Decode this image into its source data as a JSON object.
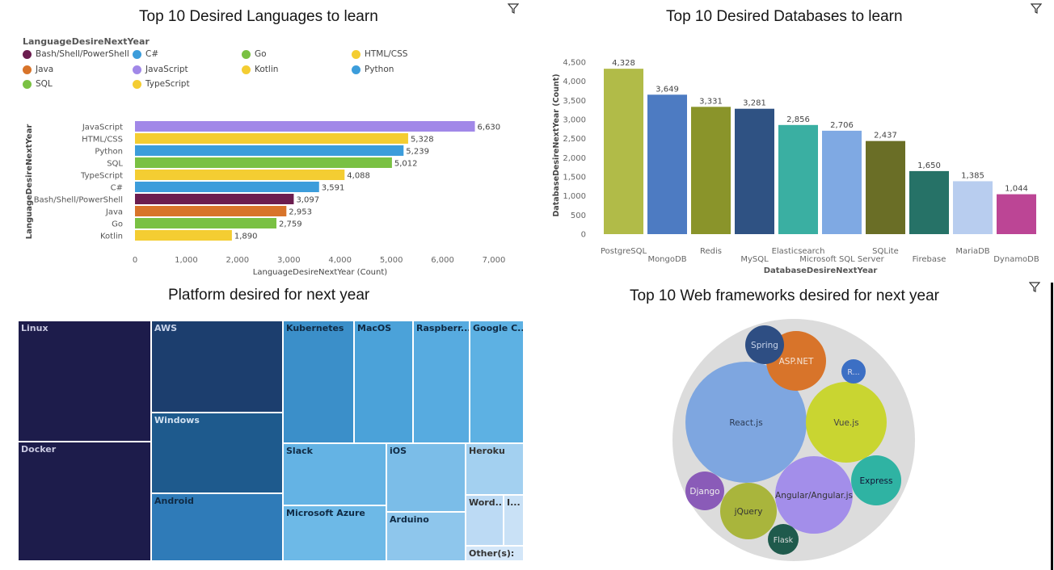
{
  "lang": {
    "title": "Top 10 Desired Languages to learn",
    "legend_title": "LanguageDesireNextYear",
    "legend": [
      {
        "label": "Bash/Shell/PowerShell",
        "color": "#6b1d4f"
      },
      {
        "label": "C#",
        "color": "#3c9ddb"
      },
      {
        "label": "Go",
        "color": "#7ac143"
      },
      {
        "label": "HTML/CSS",
        "color": "#f4cd32"
      },
      {
        "label": "Java",
        "color": "#d8742a"
      },
      {
        "label": "JavaScript",
        "color": "#a188e8"
      },
      {
        "label": "Kotlin",
        "color": "#f4cd32"
      },
      {
        "label": "Python",
        "color": "#3c9ddb"
      },
      {
        "label": "SQL",
        "color": "#7ac143"
      },
      {
        "label": "TypeScript",
        "color": "#f4cd32"
      }
    ],
    "xticks": [
      "0",
      "1,000",
      "2,000",
      "3,000",
      "4,000",
      "5,000",
      "6,000",
      "7,000"
    ]
  },
  "db": {
    "title": "Top 10 Desired Databases to learn"
  },
  "platform": {
    "title": "Platform desired for next year",
    "tiles": [
      {
        "label": "Linux",
        "color": "#1d1c4b",
        "text": "#c8c8e0"
      },
      {
        "label": "Docker",
        "color": "#1d1c4b",
        "text": "#c8c8e0"
      },
      {
        "label": "AWS",
        "color": "#1c3e6e",
        "text": "#c8d4ea"
      },
      {
        "label": "Windows",
        "color": "#1e5a8d",
        "text": "#d0e0f0"
      },
      {
        "label": "Android",
        "color": "#2f7bb8",
        "text": "#0f2a44"
      },
      {
        "label": "Kubernetes",
        "color": "#3b8fc9",
        "text": "#0f2a44"
      },
      {
        "label": "MacOS",
        "color": "#4ba2d9",
        "text": "#0f2a44"
      },
      {
        "label": "Raspberr...",
        "color": "#57abe0",
        "text": "#0f2a44"
      },
      {
        "label": "Google C...",
        "color": "#5db1e3",
        "text": "#0f2a44"
      },
      {
        "label": "Slack",
        "color": "#64b3e4",
        "text": "#0f2a44"
      },
      {
        "label": "Microsoft Azure",
        "color": "#6db9e7",
        "text": "#0f2a44"
      },
      {
        "label": "iOS",
        "color": "#7bbde8",
        "text": "#0f2a44"
      },
      {
        "label": "Arduino",
        "color": "#8ec6ec",
        "text": "#0f2a44"
      },
      {
        "label": "Heroku",
        "color": "#a3d0f0",
        "text": "#333"
      },
      {
        "label": "Word...",
        "color": "#bcdaf4",
        "text": "#333"
      },
      {
        "label": "I...",
        "color": "#c9e1f6",
        "text": "#333"
      },
      {
        "label": "Other(s):",
        "color": "#d3e6f8",
        "text": "#333"
      }
    ]
  },
  "web": {
    "title": "Top 10 Web frameworks desired for next year",
    "bubbles": [
      {
        "label": "React.js",
        "color": "#7ea6e0",
        "text": "#2b3b55"
      },
      {
        "label": "Vue.js",
        "color": "#c9d531",
        "text": "#444"
      },
      {
        "label": "Angular/Angular.js",
        "color": "#a38eea",
        "text": "#333"
      },
      {
        "label": "ASP.NET",
        "color": "#d8742a",
        "text": "#f4e4d6"
      },
      {
        "label": "Express",
        "color": "#2fb3a3",
        "text": "#113"
      },
      {
        "label": "Spring",
        "color": "#2e4e83",
        "text": "#c8d4ea"
      },
      {
        "label": "jQuery",
        "color": "#a9b53c",
        "text": "#333"
      },
      {
        "label": "Django",
        "color": "#8a5bb8",
        "text": "#eee"
      },
      {
        "label": "Flask",
        "color": "#1f5a4c",
        "text": "#ddd"
      },
      {
        "label": "R...",
        "color": "#3c6fc4",
        "text": "#dde"
      }
    ]
  },
  "chart_data": [
    {
      "type": "bar",
      "orientation": "horizontal",
      "title": "Top 10 Desired Languages to learn",
      "xlabel": "LanguageDesireNextYear (Count)",
      "ylabel": "LanguageDesireNextYear",
      "xlim": [
        0,
        7000
      ],
      "categories": [
        "JavaScript",
        "HTML/CSS",
        "Python",
        "SQL",
        "TypeScript",
        "C#",
        "Bash/Shell/PowerShell",
        "Java",
        "Go",
        "Kotlin"
      ],
      "values": [
        6630,
        5328,
        5239,
        5012,
        4088,
        3591,
        3097,
        2953,
        2759,
        1890
      ],
      "value_labels": [
        "6,630",
        "5,328",
        "5,239",
        "5,012",
        "4,088",
        "3,591",
        "3,097",
        "2,953",
        "2,759",
        "1,890"
      ],
      "colors": [
        "#a188e8",
        "#f4cd32",
        "#3c9ddb",
        "#7ac143",
        "#f4cd32",
        "#3c9ddb",
        "#6b1d4f",
        "#d8742a",
        "#7ac143",
        "#f4cd32"
      ],
      "legend": "top"
    },
    {
      "type": "bar",
      "title": "Top 10 Desired Databases to learn",
      "xlabel": "DatabaseDesireNextYear",
      "ylabel": "DatabaseDesireNextYear (Count)",
      "ylim": [
        0,
        4500
      ],
      "yticks": [
        "0",
        "500",
        "1,000",
        "1,500",
        "2,000",
        "2,500",
        "3,000",
        "3,500",
        "4,000",
        "4,500"
      ],
      "categories": [
        "PostgreSQL",
        "MongoDB",
        "Redis",
        "MySQL",
        "Elasticsearch",
        "Microsoft SQL Server",
        "SQLite",
        "Firebase",
        "MariaDB",
        "DynamoDB"
      ],
      "values": [
        4328,
        3649,
        3331,
        3281,
        2856,
        2706,
        2437,
        1650,
        1385,
        1044
      ],
      "value_labels": [
        "4,328",
        "3,649",
        "3,331",
        "3,281",
        "2,856",
        "2,706",
        "2,437",
        "1,650",
        "1,385",
        "1,044"
      ],
      "colors": [
        "#b1bb48",
        "#4d7bc2",
        "#8a942a",
        "#2f5283",
        "#3aafa2",
        "#7fa9e3",
        "#6a6e26",
        "#267267",
        "#b8cdef",
        "#bc4595"
      ]
    },
    {
      "type": "treemap",
      "title": "Platform desired for next year",
      "categories": [
        "Linux",
        "Docker",
        "AWS",
        "Windows",
        "Android",
        "Kubernetes",
        "MacOS",
        "Raspberr...",
        "Google C...",
        "Slack",
        "Microsoft Azure",
        "iOS",
        "Arduino",
        "Heroku",
        "Word...",
        "I...",
        "Other(s):"
      ]
    },
    {
      "type": "packed-bubble",
      "title": "Top 10 Web frameworks desired for next year",
      "categories": [
        "React.js",
        "Vue.js",
        "Angular/Angular.js",
        "ASP.NET",
        "Express",
        "Spring",
        "jQuery",
        "Django",
        "Flask",
        "R..."
      ]
    }
  ]
}
